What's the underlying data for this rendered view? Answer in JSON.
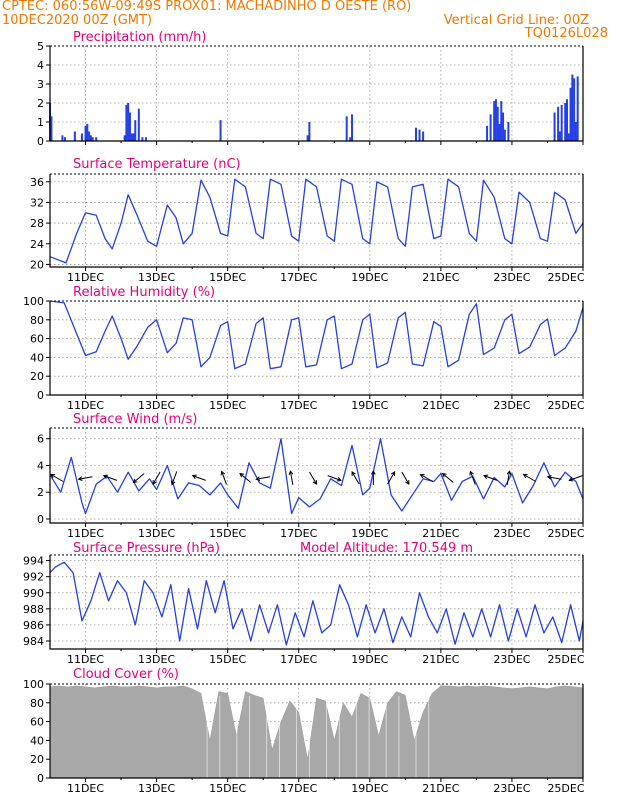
{
  "header": {
    "left_line1": "CPTEC:   060:56W-09:49S   PROX01: MACHADINHO D OESTE (RO)",
    "left_line2": "10DEC2020 00Z (GMT)",
    "right_line2": "Vertical Grid Line: 00Z",
    "right_line3": "TQ0126L028"
  },
  "colors": {
    "header": "#f07800",
    "titles": "#e6007e",
    "series": "#2540e6",
    "cloud": "#a8a8a8",
    "arrows": "#000000"
  },
  "x_axis": {
    "start": "10DEC2020 00Z",
    "end": "25DEC2020 00Z",
    "tick_labels": [
      "11DEC",
      "13DEC",
      "15DEC",
      "17DEC",
      "19DEC",
      "21DEC",
      "23DEC",
      "25DEC"
    ],
    "tick_days": [
      11,
      13,
      15,
      17,
      19,
      21,
      23,
      25
    ]
  },
  "chart_data": [
    {
      "id": "precip",
      "type": "bar",
      "title": "Precipitation (mm/h)",
      "ylim": [
        0,
        5
      ],
      "yticks": [
        0,
        1,
        2,
        3,
        4,
        5
      ],
      "show_xticklabels": false,
      "series": [
        {
          "x": [
            10.0,
            10.04,
            10.35,
            10.42,
            10.7,
            10.9,
            11.0,
            11.05,
            11.1,
            11.15,
            11.2,
            11.3,
            12.1,
            12.15,
            12.2,
            12.25,
            12.3,
            12.35,
            12.4,
            12.5,
            12.6,
            12.7,
            14.8,
            17.25,
            17.3,
            18.35,
            18.45,
            18.5,
            20.3,
            20.4,
            20.5,
            22.3,
            22.4,
            22.5,
            22.55,
            22.6,
            22.65,
            22.7,
            22.75,
            22.8,
            22.9,
            24.2,
            24.3,
            24.35,
            24.4,
            24.5,
            24.55,
            24.6,
            24.65,
            24.7,
            24.75,
            24.8,
            24.85
          ],
          "y": [
            2.0,
            1.3,
            0.3,
            0.2,
            0.5,
            0.4,
            0.8,
            0.9,
            0.5,
            0.3,
            0.2,
            0.2,
            0.3,
            1.9,
            2.0,
            1.5,
            0.4,
            0.4,
            1.1,
            1.7,
            0.2,
            0.2,
            1.1,
            0.3,
            1.0,
            1.3,
            0.2,
            1.4,
            0.7,
            0.6,
            0.5,
            0.8,
            1.4,
            2.1,
            2.2,
            1.8,
            0.9,
            2.1,
            1.5,
            0.6,
            1.0,
            1.5,
            1.8,
            0.5,
            1.9,
            2.0,
            2.2,
            0.4,
            2.8,
            3.5,
            3.3,
            1.0,
            3.4
          ]
        }
      ]
    },
    {
      "id": "temp",
      "type": "line",
      "title": "Surface Temperature (nC)",
      "ylim": [
        19.5,
        37.5
      ],
      "yticks": [
        20,
        24,
        28,
        32,
        36
      ],
      "show_xticklabels": true,
      "series": [
        {
          "x": [
            10.0,
            10.45,
            10.75,
            11.0,
            11.3,
            11.55,
            11.75,
            12.0,
            12.2,
            12.45,
            12.75,
            13.0,
            13.3,
            13.55,
            13.75,
            14.0,
            14.25,
            14.5,
            14.8,
            15.0,
            15.2,
            15.5,
            15.8,
            16.0,
            16.2,
            16.5,
            16.8,
            17.0,
            17.2,
            17.5,
            17.8,
            18.0,
            18.2,
            18.5,
            18.8,
            19.0,
            19.2,
            19.5,
            19.8,
            20.0,
            20.2,
            20.5,
            20.8,
            21.0,
            21.2,
            21.5,
            21.8,
            22.0,
            22.2,
            22.5,
            22.8,
            23.0,
            23.2,
            23.5,
            23.8,
            24.0,
            24.2,
            24.5,
            24.8,
            25.0
          ],
          "y": [
            21.5,
            20.3,
            26.0,
            30.0,
            29.5,
            25.0,
            23.0,
            28.0,
            33.5,
            29.5,
            24.5,
            23.5,
            31.5,
            29.0,
            24.0,
            26.0,
            36.3,
            33.0,
            26.0,
            25.5,
            36.5,
            35.0,
            26.0,
            25.0,
            36.5,
            35.5,
            25.5,
            24.5,
            36.5,
            35.0,
            25.5,
            24.5,
            36.5,
            35.5,
            25.0,
            24.0,
            36.0,
            35.0,
            25.0,
            23.5,
            35.0,
            35.5,
            25.0,
            25.5,
            36.5,
            35.0,
            26.0,
            24.5,
            36.3,
            33.0,
            25.0,
            24.0,
            34.0,
            32.0,
            25.0,
            24.5,
            34.0,
            32.5,
            26.0,
            28.0
          ]
        }
      ]
    },
    {
      "id": "rh",
      "type": "line",
      "title": "Relative Humidity (%)",
      "ylim": [
        0,
        100
      ],
      "yticks": [
        0,
        20,
        40,
        60,
        80,
        100
      ],
      "show_xticklabels": true,
      "series": [
        {
          "x": [
            10.0,
            10.4,
            10.75,
            11.0,
            11.3,
            11.55,
            11.75,
            12.0,
            12.2,
            12.45,
            12.75,
            13.0,
            13.3,
            13.55,
            13.75,
            14.0,
            14.25,
            14.5,
            14.8,
            15.0,
            15.2,
            15.5,
            15.8,
            16.0,
            16.2,
            16.5,
            16.8,
            17.0,
            17.2,
            17.5,
            17.8,
            18.0,
            18.2,
            18.5,
            18.8,
            19.0,
            19.2,
            19.5,
            19.8,
            20.0,
            20.2,
            20.5,
            20.8,
            21.0,
            21.2,
            21.5,
            21.8,
            22.0,
            22.2,
            22.5,
            22.8,
            23.0,
            23.2,
            23.5,
            23.8,
            24.0,
            24.2,
            24.5,
            24.8,
            25.0
          ],
          "y": [
            100,
            98,
            65,
            42,
            46,
            68,
            84,
            60,
            38,
            52,
            72,
            80,
            45,
            55,
            82,
            80,
            30,
            40,
            74,
            78,
            28,
            33,
            76,
            82,
            28,
            30,
            80,
            82,
            30,
            32,
            80,
            84,
            28,
            33,
            80,
            86,
            29,
            34,
            82,
            88,
            33,
            31,
            78,
            73,
            30,
            37,
            86,
            97,
            43,
            50,
            80,
            86,
            44,
            51,
            75,
            81,
            42,
            50,
            68,
            93
          ]
        }
      ]
    },
    {
      "id": "wind",
      "type": "line",
      "title": "Surface Wind (m/s)",
      "ylim": [
        -0.3,
        6.8
      ],
      "yticks": [
        0,
        2,
        4,
        6
      ],
      "show_xticklabels": true,
      "series": [
        {
          "x": [
            10.0,
            10.3,
            10.6,
            10.9,
            11.0,
            11.3,
            11.6,
            11.9,
            12.2,
            12.5,
            12.8,
            13.0,
            13.3,
            13.6,
            13.9,
            14.2,
            14.5,
            14.8,
            15.0,
            15.3,
            15.6,
            15.9,
            16.2,
            16.5,
            16.8,
            17.0,
            17.3,
            17.6,
            17.9,
            18.2,
            18.5,
            18.8,
            19.0,
            19.3,
            19.6,
            19.9,
            20.2,
            20.5,
            20.8,
            21.0,
            21.3,
            21.6,
            21.9,
            22.2,
            22.5,
            22.8,
            23.0,
            23.3,
            23.6,
            23.9,
            24.2,
            24.5,
            24.8,
            25.0
          ],
          "y": [
            3.3,
            2.0,
            4.6,
            1.2,
            0.4,
            2.6,
            3.2,
            2.0,
            3.5,
            2.1,
            3.0,
            2.2,
            4.0,
            1.5,
            2.7,
            2.5,
            1.8,
            2.7,
            1.8,
            0.8,
            4.2,
            2.7,
            2.3,
            6.0,
            0.4,
            1.6,
            0.9,
            1.5,
            3.0,
            2.5,
            5.5,
            1.8,
            2.3,
            6.0,
            1.8,
            0.6,
            1.8,
            3.0,
            2.8,
            3.4,
            1.4,
            2.8,
            3.2,
            1.5,
            3.1,
            2.4,
            3.4,
            1.2,
            2.5,
            4.2,
            2.4,
            3.5,
            2.8,
            1.5
          ]
        }
      ],
      "arrow_days": [
        10.2,
        11.0,
        11.7,
        12.5,
        13.0,
        13.5,
        14.2,
        14.9,
        15.5,
        16.0,
        16.8,
        17.4,
        18.0,
        18.6,
        19.1,
        19.6,
        20.0,
        20.6,
        21.2,
        21.9,
        22.4,
        22.9,
        23.5,
        24.2,
        24.8
      ],
      "arrow_dirs_deg": [
        210,
        170,
        200,
        140,
        120,
        110,
        200,
        250,
        220,
        170,
        260,
        60,
        20,
        240,
        270,
        300,
        60,
        210,
        220,
        250,
        200,
        280,
        210,
        190,
        160
      ]
    },
    {
      "id": "pressure",
      "type": "line",
      "title": "Surface Pressure (hPa)",
      "annotation": "Model Altitude: 170.549 m",
      "ylim": [
        983.0,
        994.7
      ],
      "yticks": [
        984,
        986,
        988,
        990,
        992,
        994
      ],
      "show_xticklabels": true,
      "series": [
        {
          "x": [
            10.0,
            10.15,
            10.4,
            10.65,
            10.9,
            11.15,
            11.4,
            11.65,
            11.9,
            12.15,
            12.4,
            12.65,
            12.9,
            13.15,
            13.4,
            13.65,
            13.9,
            14.15,
            14.4,
            14.65,
            14.9,
            15.15,
            15.4,
            15.65,
            15.9,
            16.15,
            16.4,
            16.65,
            16.9,
            17.15,
            17.4,
            17.65,
            17.9,
            18.15,
            18.4,
            18.65,
            18.9,
            19.15,
            19.4,
            19.65,
            19.9,
            20.15,
            20.4,
            20.65,
            20.9,
            21.15,
            21.4,
            21.65,
            21.9,
            22.15,
            22.4,
            22.65,
            22.9,
            23.15,
            23.4,
            23.65,
            23.9,
            24.15,
            24.4,
            24.65,
            24.9,
            25.0
          ],
          "y": [
            992.5,
            993.2,
            993.8,
            992.5,
            986.5,
            989.0,
            992.5,
            989.0,
            991.5,
            990.0,
            986.0,
            991.5,
            990.0,
            987.0,
            991.0,
            984.0,
            990.5,
            985.5,
            991.5,
            987.5,
            991.5,
            985.5,
            988.0,
            984.0,
            988.5,
            985.0,
            988.5,
            983.5,
            987.5,
            984.5,
            989.0,
            985.0,
            986.0,
            991.0,
            988.5,
            984.5,
            988.5,
            985.0,
            988.0,
            983.8,
            987.0,
            984.5,
            990.0,
            987.0,
            985.0,
            988.0,
            983.6,
            987.5,
            984.5,
            988.0,
            984.5,
            988.5,
            984.0,
            988.0,
            984.5,
            988.5,
            985.0,
            987.0,
            983.8,
            988.5,
            984.0,
            986.5
          ]
        }
      ]
    },
    {
      "id": "cloud",
      "type": "area",
      "title": "Cloud Cover (%)",
      "ylim": [
        0,
        100
      ],
      "yticks": [
        0,
        20,
        40,
        60,
        80,
        100
      ],
      "show_xticklabels": true,
      "series": [
        {
          "x": [
            10.0,
            10.25,
            10.5,
            10.75,
            11.0,
            11.25,
            11.5,
            11.75,
            12.0,
            12.25,
            12.5,
            12.75,
            13.0,
            13.25,
            13.5,
            13.75,
            14.0,
            14.25,
            14.5,
            14.75,
            15.0,
            15.25,
            15.5,
            15.75,
            16.0,
            16.25,
            16.5,
            16.75,
            17.0,
            17.25,
            17.5,
            17.75,
            18.0,
            18.25,
            18.5,
            18.75,
            19.0,
            19.25,
            19.5,
            19.75,
            20.0,
            20.25,
            20.5,
            20.75,
            21.0,
            21.25,
            21.5,
            21.75,
            22.0,
            22.25,
            22.5,
            22.75,
            23.0,
            23.25,
            23.5,
            23.75,
            24.0,
            24.25,
            24.5,
            24.75,
            25.0
          ],
          "y": [
            97,
            98,
            97,
            98,
            97,
            96,
            97,
            98,
            97,
            97,
            98,
            97,
            96,
            97,
            97,
            98,
            95,
            90,
            40,
            92,
            90,
            45,
            92,
            88,
            85,
            30,
            60,
            82,
            70,
            20,
            85,
            82,
            40,
            80,
            65,
            90,
            85,
            45,
            80,
            92,
            88,
            40,
            70,
            90,
            98,
            98,
            97,
            98,
            97,
            98,
            97,
            96,
            95,
            96,
            97,
            96,
            95,
            97,
            98,
            97,
            96
          ]
        }
      ]
    }
  ]
}
